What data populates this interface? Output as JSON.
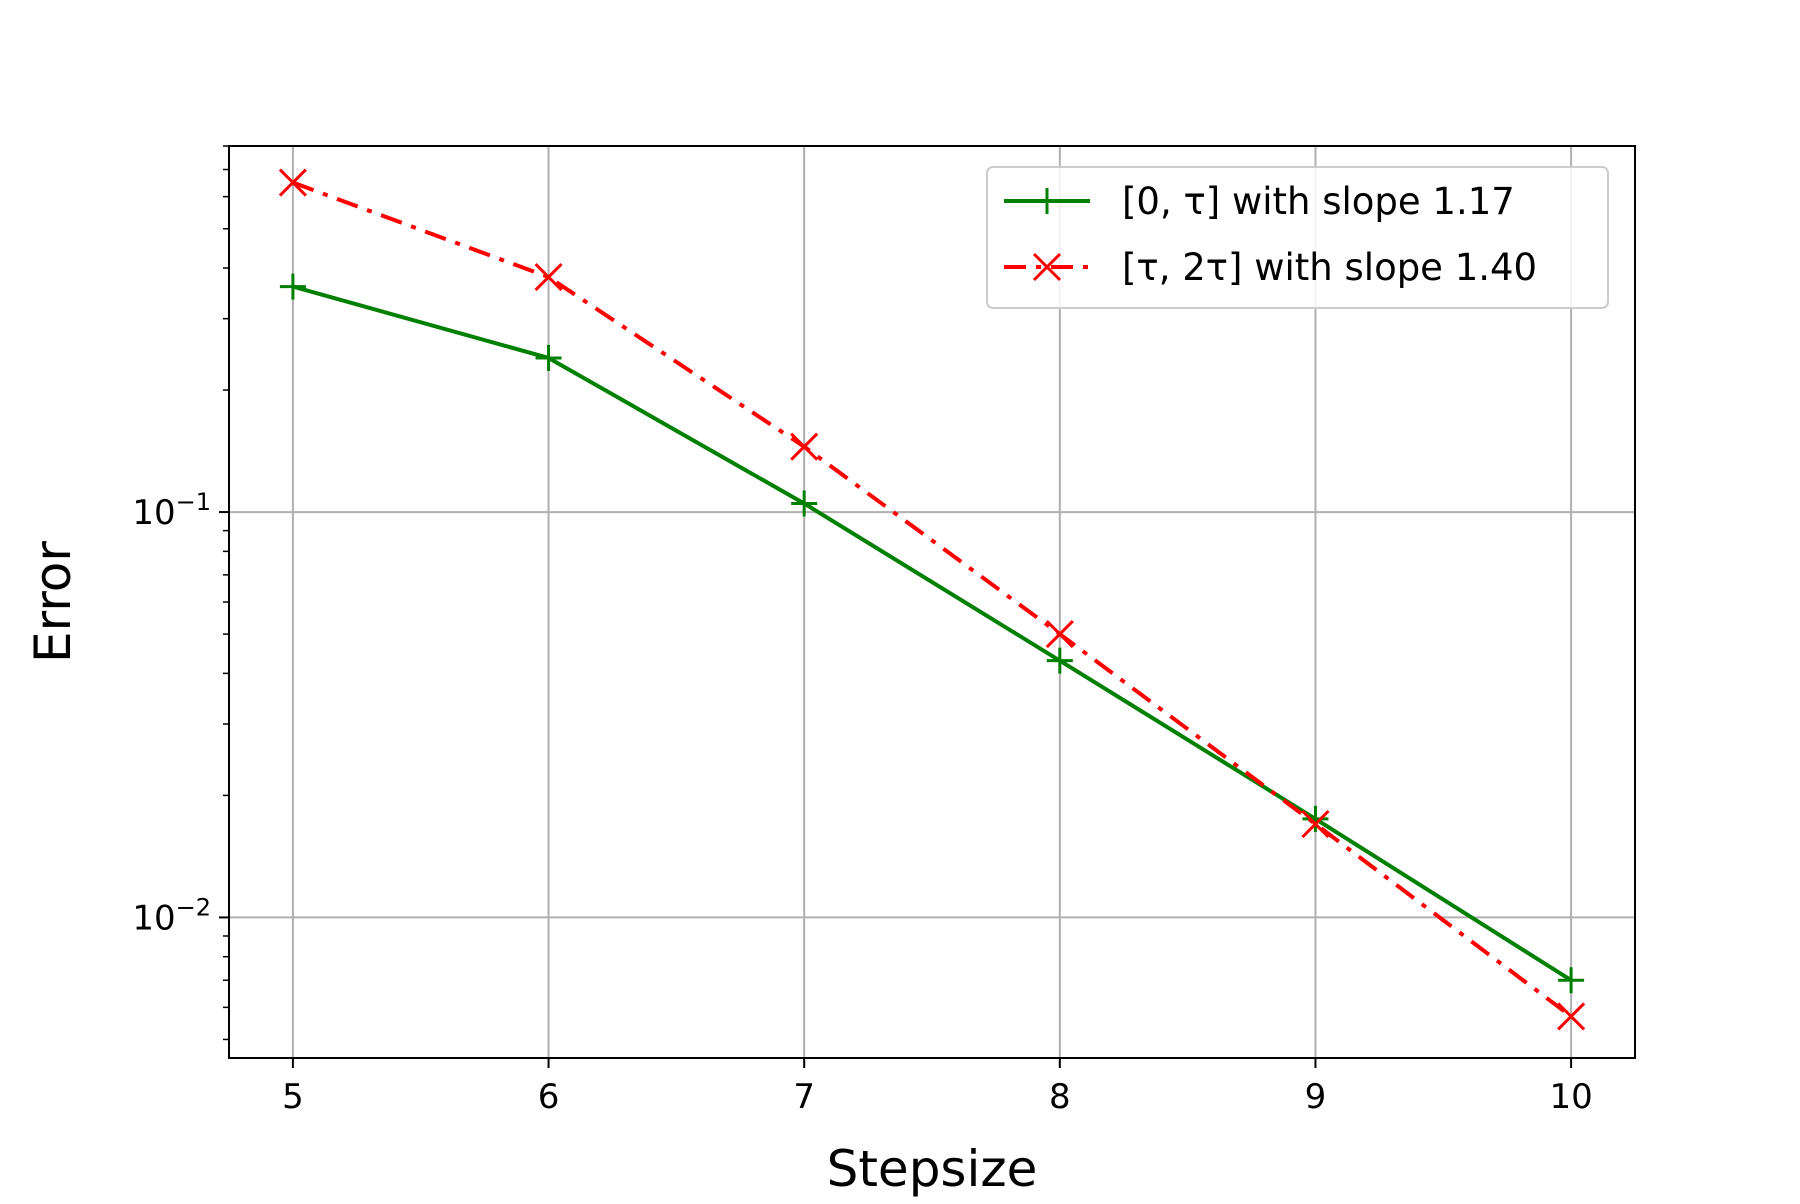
{
  "chart_data": {
    "type": "line",
    "title": "",
    "xlabel": "Stepsize",
    "ylabel": "Error",
    "yscale": "log",
    "xlim": [
      4.75,
      10.25
    ],
    "ylim": [
      0.0045,
      0.8
    ],
    "x": [
      5,
      6,
      7,
      8,
      9,
      10
    ],
    "xticks": [
      "5",
      "6",
      "7",
      "8",
      "9",
      "10"
    ],
    "yticks": [
      {
        "value": 0.1,
        "base": "10",
        "exponent": "−1"
      },
      {
        "value": 0.01,
        "base": "10",
        "exponent": "−2"
      }
    ],
    "grid": true,
    "legend_position": "upper right",
    "series": [
      {
        "name": "[0, τ] with slope 1.17",
        "color": "#008000",
        "linestyle": "solid",
        "marker": "plus",
        "values": [
          0.36,
          0.24,
          0.105,
          0.043,
          0.0175,
          0.007
        ]
      },
      {
        "name": "[τ, 2τ] with slope 1.40",
        "color": "#ff0000",
        "linestyle": "dashdot",
        "marker": "x",
        "values": [
          0.65,
          0.38,
          0.145,
          0.05,
          0.017,
          0.0057
        ]
      }
    ]
  }
}
